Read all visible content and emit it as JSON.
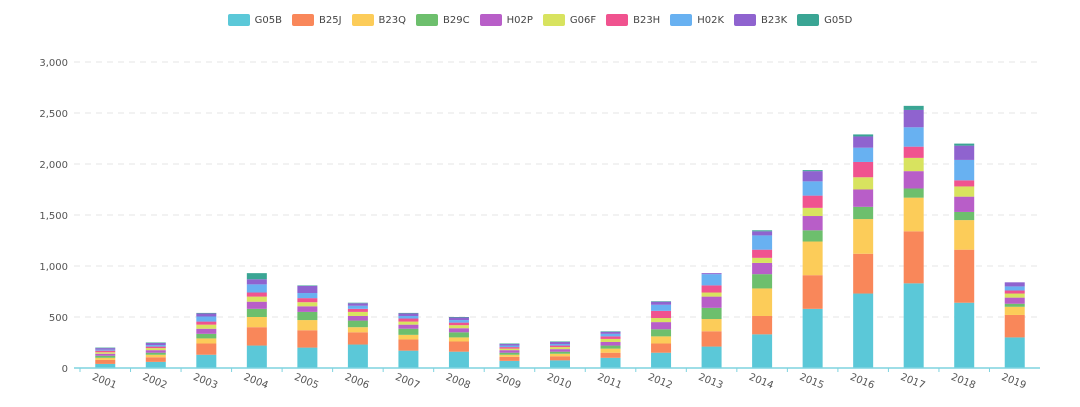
{
  "chart_data": {
    "type": "bar",
    "stacked": true,
    "categories": [
      "2001",
      "2002",
      "2003",
      "2004",
      "2005",
      "2006",
      "2007",
      "2008",
      "2009",
      "2010",
      "2011",
      "2012",
      "2013",
      "2014",
      "2015",
      "2016",
      "2017",
      "2018",
      "2019"
    ],
    "ylim": [
      0,
      3000
    ],
    "yticks": [
      0,
      500,
      1000,
      1500,
      2000,
      2500,
      3000
    ],
    "ytick_labels": [
      "0",
      "500",
      "1,000",
      "1,500",
      "2,000",
      "2,500",
      "3,000"
    ],
    "grid": true,
    "legend_position": "top-center",
    "series": [
      {
        "name": "G05B",
        "color": "#5bc8d8",
        "values": [
          40,
          60,
          130,
          220,
          200,
          230,
          170,
          160,
          70,
          75,
          100,
          150,
          210,
          330,
          580,
          730,
          830,
          640,
          300
        ]
      },
      {
        "name": "B25J",
        "color": "#f9875a",
        "values": [
          40,
          45,
          110,
          180,
          170,
          120,
          110,
          100,
          40,
          40,
          50,
          90,
          150,
          180,
          330,
          390,
          510,
          520,
          220
        ]
      },
      {
        "name": "B23Q",
        "color": "#fccc59",
        "values": [
          20,
          25,
          50,
          100,
          100,
          50,
          45,
          40,
          20,
          25,
          40,
          70,
          120,
          270,
          330,
          340,
          330,
          290,
          80
        ]
      },
      {
        "name": "B29C",
        "color": "#6dbf6d",
        "values": [
          20,
          20,
          45,
          80,
          80,
          65,
          60,
          50,
          20,
          20,
          30,
          70,
          110,
          140,
          110,
          120,
          90,
          80,
          30
        ]
      },
      {
        "name": "H02P",
        "color": "#b85ec8",
        "values": [
          20,
          25,
          50,
          70,
          55,
          45,
          40,
          40,
          25,
          25,
          35,
          70,
          110,
          110,
          140,
          170,
          170,
          150,
          60
        ]
      },
      {
        "name": "G06F",
        "color": "#d8e35f",
        "values": [
          15,
          20,
          40,
          50,
          40,
          40,
          30,
          30,
          15,
          20,
          30,
          40,
          40,
          50,
          80,
          120,
          130,
          100,
          40
        ]
      },
      {
        "name": "B23H",
        "color": "#f0538f",
        "values": [
          15,
          15,
          30,
          40,
          40,
          30,
          30,
          25,
          15,
          15,
          25,
          70,
          70,
          80,
          120,
          150,
          110,
          60,
          30
        ]
      },
      {
        "name": "H02K",
        "color": "#68b1f1",
        "values": [
          10,
          15,
          50,
          80,
          50,
          30,
          25,
          25,
          15,
          15,
          25,
          60,
          110,
          140,
          140,
          140,
          190,
          200,
          40
        ]
      },
      {
        "name": "B23K",
        "color": "#8f63cf",
        "values": [
          15,
          20,
          30,
          50,
          70,
          25,
          25,
          25,
          15,
          20,
          20,
          30,
          10,
          40,
          100,
          110,
          170,
          140,
          40
        ]
      },
      {
        "name": "G05D",
        "color": "#3aa594",
        "values": [
          5,
          5,
          5,
          60,
          5,
          5,
          5,
          5,
          5,
          5,
          5,
          5,
          0,
          10,
          10,
          20,
          40,
          20,
          0
        ]
      }
    ]
  }
}
